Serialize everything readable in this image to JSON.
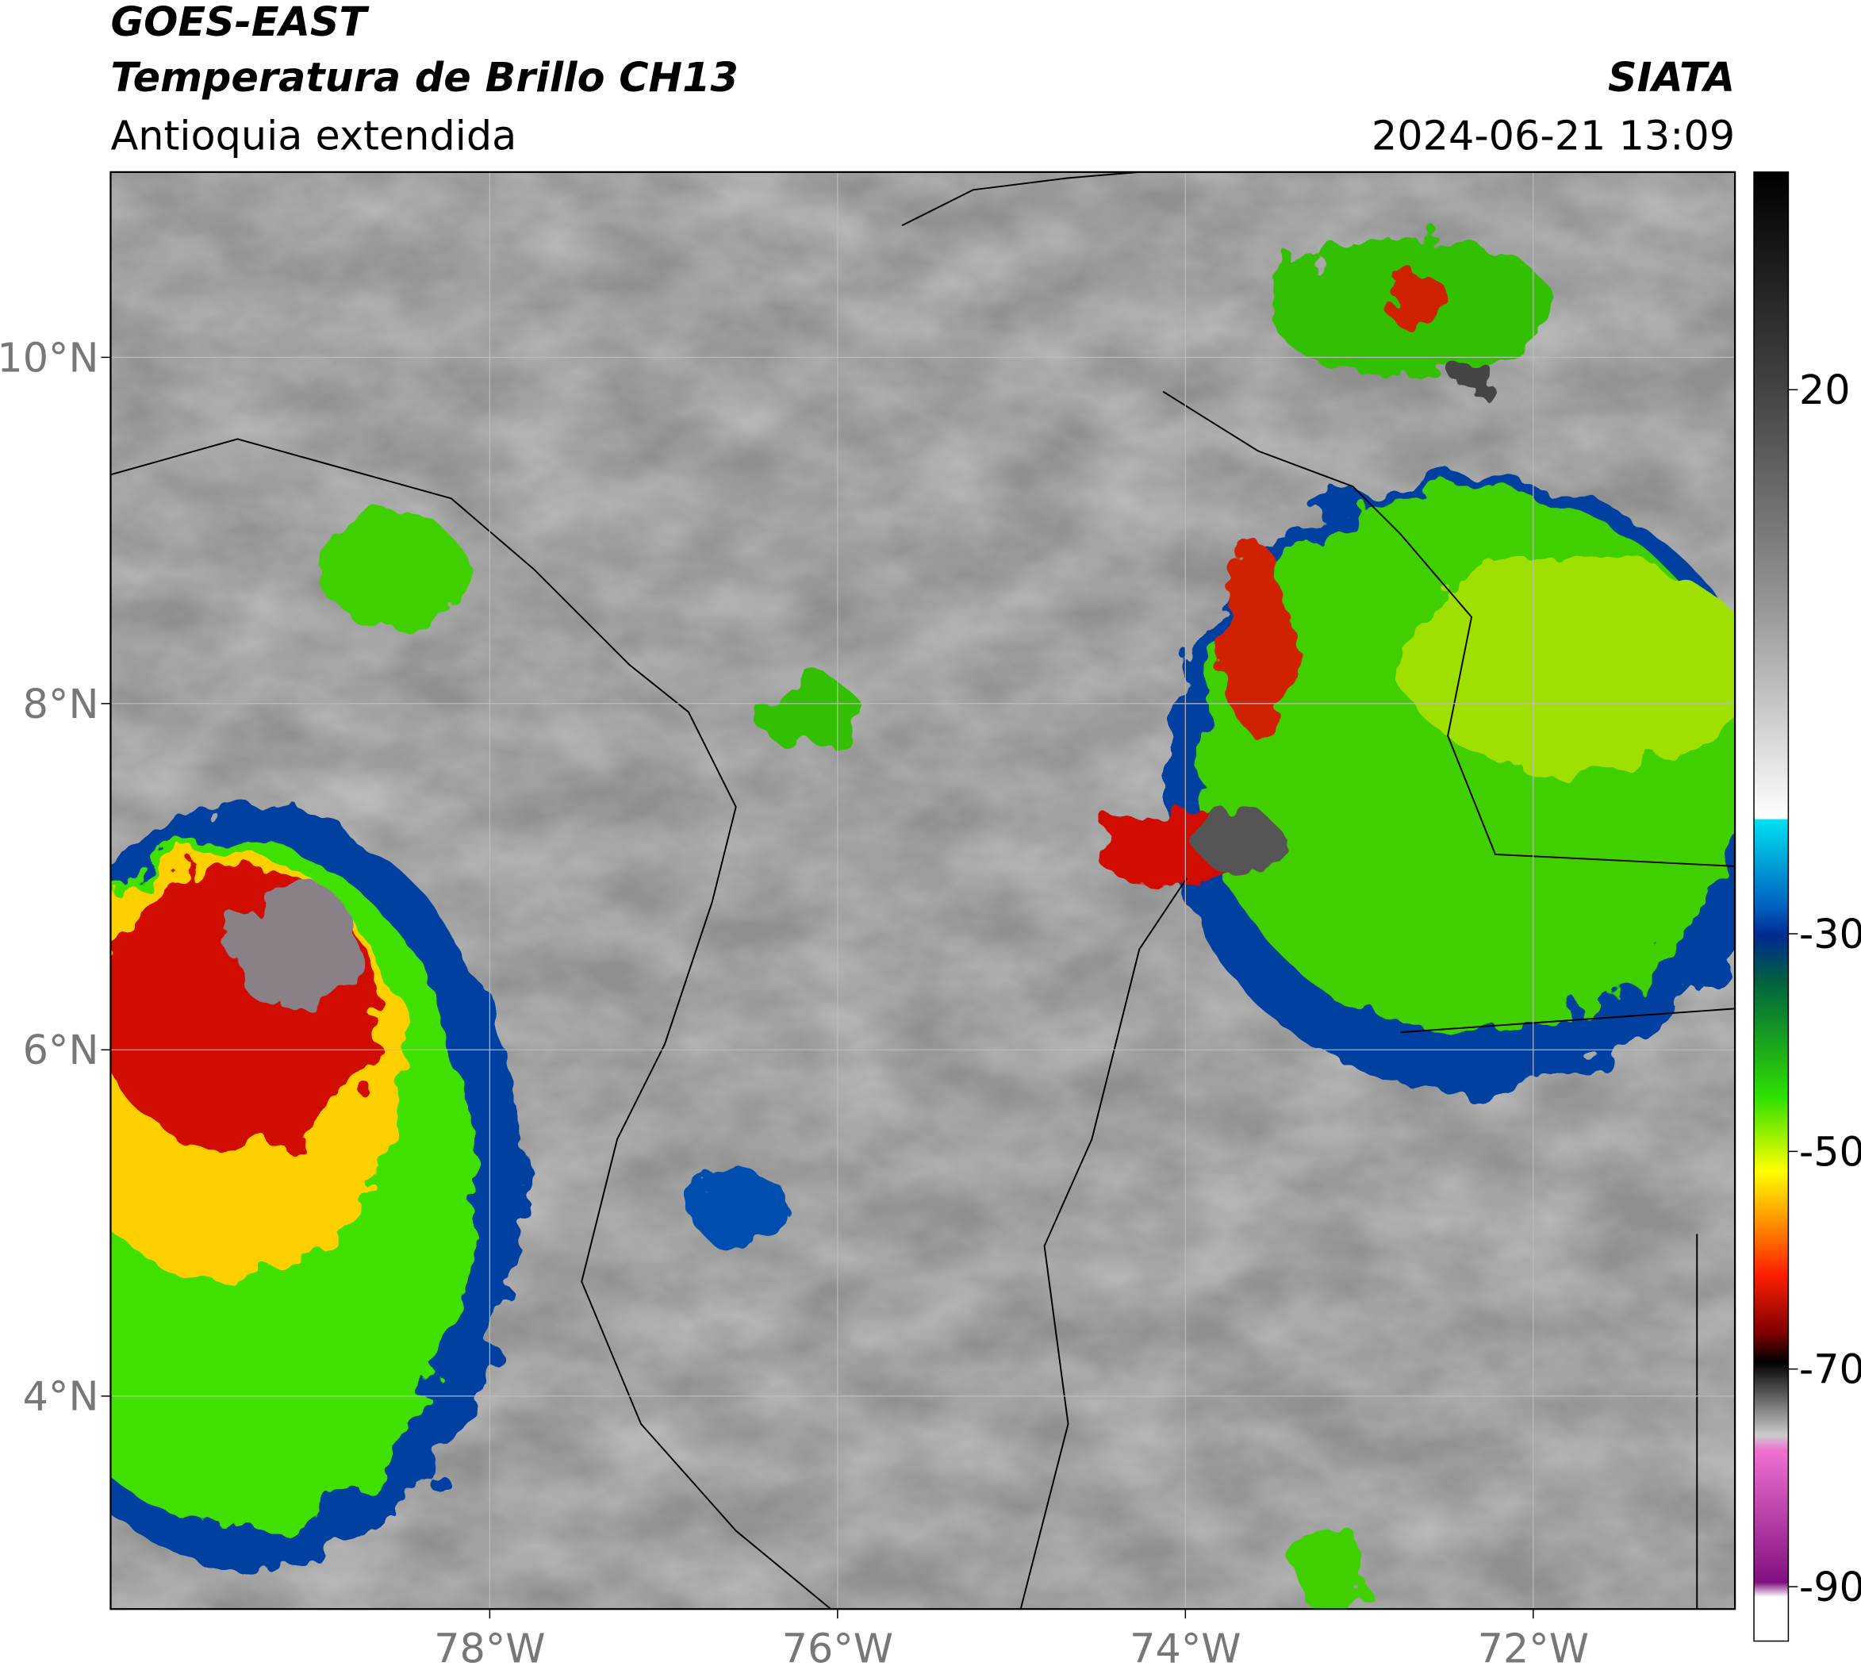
{
  "header": {
    "title": "GOES-EAST",
    "subtitle": "Temperatura de Brillo CH13",
    "region": "Antioquia extendida",
    "source": "SIATA",
    "datetime": "2024-06-21 13:09"
  },
  "map": {
    "lon_range": [
      -80.18,
      -70.84
    ],
    "lat_range": [
      2.77,
      11.07
    ],
    "lon_ticks": [
      {
        "value": -78,
        "label": "78°W"
      },
      {
        "value": -76,
        "label": "76°W"
      },
      {
        "value": -74,
        "label": "74°W"
      },
      {
        "value": -72,
        "label": "72°W"
      }
    ],
    "lat_ticks": [
      {
        "value": 10,
        "label": "10°N"
      },
      {
        "value": 8,
        "label": "8°N"
      },
      {
        "value": 6,
        "label": "6°N"
      },
      {
        "value": 4,
        "label": "4°N"
      }
    ],
    "colorbar": {
      "range": [
        -95,
        40
      ],
      "ticks": [
        20,
        -30,
        -50,
        -70,
        -90
      ]
    }
  }
}
